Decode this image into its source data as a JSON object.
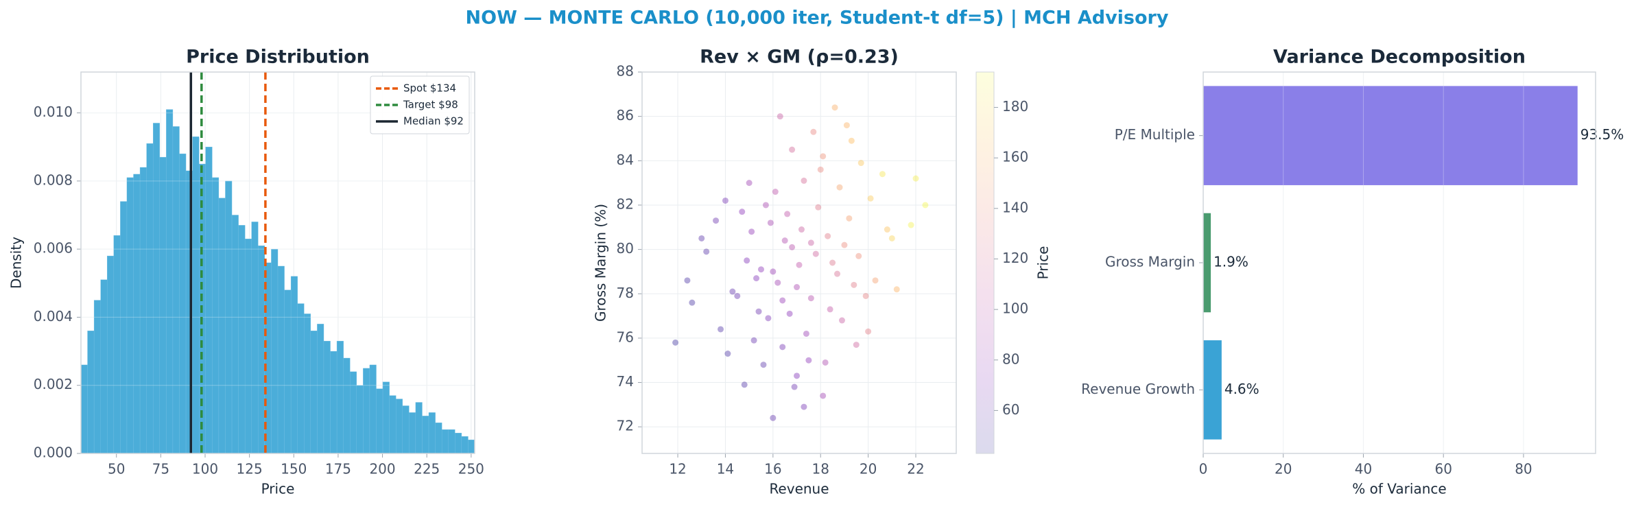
{
  "title": "NOW — MONTE CARLO (10,000 iter, Student-t df=5) | MCH Advisory",
  "chart_data": [
    {
      "type": "histogram",
      "title": "Price Distribution",
      "x_label": "Price",
      "y_label": "Density",
      "color": "#4badd9",
      "bins": [
        30,
        33.7,
        37.4,
        41.1,
        44.8,
        48.5,
        52.2,
        55.9,
        59.6,
        63.3,
        67,
        70.7,
        74.4,
        78.1,
        81.8,
        85.5,
        89.2,
        92.9,
        96.6,
        100.3,
        104,
        107.7,
        111.4,
        115.1,
        118.8,
        122.5,
        126.2,
        129.9,
        133.6,
        137.3,
        141,
        144.7,
        148.4,
        152.1,
        155.8,
        159.5,
        163.2,
        166.9,
        170.6,
        174.3,
        178,
        181.7,
        185.4,
        189.1,
        192.8,
        196.5,
        200.2,
        203.9,
        207.6,
        211.3,
        215,
        218.7,
        222.4,
        226.1,
        229.8,
        233.5,
        237.2,
        240.9,
        244.6,
        248.3,
        252
      ],
      "values": [
        0.0026,
        0.0036,
        0.0045,
        0.0051,
        0.0058,
        0.0064,
        0.0074,
        0.0081,
        0.0082,
        0.0084,
        0.0091,
        0.0097,
        0.0087,
        0.0101,
        0.0096,
        0.0088,
        0.0083,
        0.0093,
        0.0085,
        0.009,
        0.0081,
        0.0075,
        0.008,
        0.007,
        0.0067,
        0.0063,
        0.0068,
        0.0061,
        0.0056,
        0.006,
        0.0055,
        0.0048,
        0.0052,
        0.0044,
        0.0041,
        0.0036,
        0.0038,
        0.0033,
        0.003,
        0.0033,
        0.0028,
        0.0024,
        0.002,
        0.0025,
        0.0026,
        0.0019,
        0.0021,
        0.0017,
        0.0016,
        0.0014,
        0.0012,
        0.0015,
        0.0011,
        0.0012,
        0.0009,
        0.0007,
        0.0007,
        0.0006,
        0.0005,
        0.0004
      ],
      "lines": [
        {
          "name": "Spot $134",
          "value": 134,
          "color": "#e8590c",
          "style": "dashed"
        },
        {
          "name": "Target $98",
          "value": 98,
          "color": "#2e8b3e",
          "style": "dashed"
        },
        {
          "name": "Median $92",
          "value": 92,
          "color": "#1b2631",
          "style": "solid"
        }
      ],
      "xlim": [
        30,
        252
      ],
      "ylim": [
        0,
        0.0112
      ],
      "xticks": [
        50,
        75,
        100,
        125,
        150,
        175,
        200,
        225,
        250
      ],
      "yticks": [
        {
          "value": 0,
          "label": "0.000"
        },
        {
          "value": 0.002,
          "label": "0.002"
        },
        {
          "value": 0.004,
          "label": "0.004"
        },
        {
          "value": 0.006,
          "label": "0.006"
        },
        {
          "value": 0.008,
          "label": "0.008"
        },
        {
          "value": 0.01,
          "label": "0.010"
        }
      ],
      "grid": true,
      "legend": "upper right"
    },
    {
      "type": "scatter",
      "title": "Rev × GM (ρ=0.23)",
      "x_label": "Revenue",
      "y_label": "Gross Margin (%)",
      "colorbar_label": "Price",
      "colormap": "plasma",
      "x": [
        16.2,
        17.1,
        18.3,
        15.4,
        19.2,
        16.8,
        17.6,
        14.9,
        18.7,
        15.9,
        20.1,
        13.8,
        17.3,
        16.4,
        18.9,
        15.1,
        19.6,
        17.9,
        14.3,
        16.7,
        18.1,
        15.6,
        21.0,
        13.2,
        17.4,
        19.9,
        16.1,
        18.5,
        14.7,
        17.0,
        20.6,
        12.6,
        16.9,
        19.3,
        15.3,
        18.2,
        17.7,
        14.1,
        21.8,
        16.5,
        15.8,
        18.8,
        17.2,
        13.6,
        20.3,
        16.0,
        19.0,
        15.0,
        17.5,
        18.4,
        22.4,
        11.9,
        16.3,
        19.5,
        14.5,
        17.8,
        20.8,
        15.5,
        18.0,
        16.6,
        13.0,
        19.7,
        17.0,
        21.2,
        15.2,
        18.6,
        16.0,
        17.3,
        19.4,
        14.0,
        20.0,
        16.8,
        18.1,
        15.7,
        12.4,
        22.0,
        17.6,
        14.8,
        19.1,
        16.4
      ],
      "y": [
        78.5,
        79.3,
        80.6,
        77.2,
        81.4,
        80.1,
        77.8,
        79.5,
        78.9,
        81.2,
        82.3,
        76.4,
        83.1,
        75.6,
        76.8,
        80.8,
        79.7,
        81.9,
        78.1,
        77.1,
        84.2,
        74.8,
        80.5,
        79.9,
        76.2,
        77.9,
        82.6,
        79.4,
        81.7,
        78.3,
        83.4,
        77.6,
        73.8,
        84.9,
        78.7,
        74.9,
        85.3,
        75.3,
        81.1,
        80.4,
        76.9,
        82.8,
        80.9,
        81.3,
        78.6,
        72.4,
        80.2,
        83.0,
        75.0,
        77.3,
        82.0,
        75.8,
        86.0,
        75.7,
        77.9,
        79.8,
        80.9,
        79.1,
        83.6,
        81.6,
        80.5,
        83.9,
        74.3,
        78.2,
        75.9,
        86.4,
        79.0,
        72.9,
        78.4,
        82.2,
        76.3,
        84.5,
        73.4,
        82.0,
        78.6,
        83.2,
        80.3,
        73.9,
        85.6,
        77.7
      ],
      "color_values": [
        85,
        102,
        128,
        62,
        150,
        98,
        96,
        70,
        120,
        88,
        172,
        52,
        118,
        66,
        108,
        78,
        140,
        126,
        58,
        74,
        142,
        56,
        176,
        55,
        82,
        132,
        100,
        124,
        74,
        90,
        185,
        48,
        62,
        165,
        70,
        92,
        135,
        50,
        190,
        94,
        68,
        152,
        110,
        62,
        150,
        58,
        138,
        84,
        76,
        104,
        192,
        45,
        108,
        112,
        60,
        112,
        168,
        76,
        136,
        102,
        56,
        170,
        70,
        160,
        60,
        158,
        82,
        66,
        128,
        66,
        130,
        116,
        86,
        90,
        50,
        188,
        108,
        52,
        160,
        80
      ],
      "xlim": [
        10.5,
        23.7
      ],
      "ylim": [
        70.8,
        88
      ],
      "xticks": [
        12,
        14,
        16,
        18,
        20,
        22
      ],
      "yticks": [
        72,
        74,
        76,
        78,
        80,
        82,
        84,
        86,
        88
      ],
      "clim": [
        43,
        194
      ],
      "cticks": [
        60,
        80,
        100,
        120,
        140,
        160,
        180
      ],
      "grid": true
    },
    {
      "type": "barh",
      "title": "Variance Decomposition",
      "x_label": "% of Variance",
      "categories": [
        "P/E Multiple",
        "Gross Margin",
        "Revenue Growth"
      ],
      "values": [
        93.5,
        1.9,
        4.6
      ],
      "value_labels": [
        "93.5%",
        "1.9%",
        "4.6%"
      ],
      "colors": [
        "#8a7fe8",
        "#4a9b6f",
        "#3aa3d5"
      ],
      "xlim": [
        0,
        98
      ],
      "xticks": [
        0,
        20,
        40,
        60,
        80
      ],
      "grid": true
    }
  ]
}
